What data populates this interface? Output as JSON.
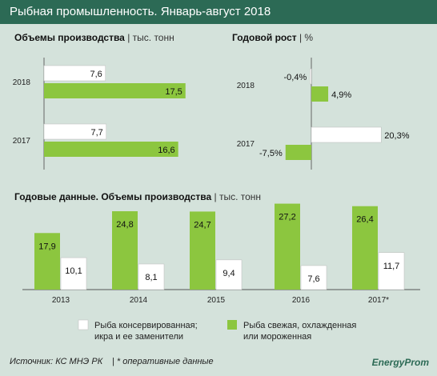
{
  "title": "Рыбная промышленность. Январь-август 2018",
  "colors": {
    "header": "#2c6a55",
    "canned": "#ffffff",
    "fresh": "#8cc63f",
    "background": "#d4e2db"
  },
  "panels": {
    "volume": {
      "title": "Объемы производства",
      "unit": "| тыс. тонн"
    },
    "growth": {
      "title": "Годовой рост",
      "unit": "| %"
    },
    "annual": {
      "title": "Годовые данные. Объемы производства",
      "unit": "| тыс. тонн"
    }
  },
  "legend": {
    "canned_line1": "Рыба консервированная;",
    "canned_line2": "икра и ее заменители",
    "fresh_line1": "Рыба свежая, охлажденная",
    "fresh_line2": "или мороженная"
  },
  "footer": {
    "source": "Источник: КС МНЭ РК",
    "note": "| * оперативные данные",
    "brand": "EnergyProm"
  },
  "chart_data": [
    {
      "type": "bar",
      "orientation": "horizontal",
      "title": "Объемы производства",
      "unit": "тыс. тонн",
      "categories": [
        "2018",
        "2017"
      ],
      "series": [
        {
          "key": "canned",
          "values": [
            7.6,
            7.7
          ],
          "labels": [
            "7,6",
            "7,7"
          ]
        },
        {
          "key": "fresh",
          "values": [
            17.5,
            16.6
          ],
          "labels": [
            "17,5",
            "16,6"
          ]
        }
      ]
    },
    {
      "type": "bar",
      "orientation": "horizontal",
      "title": "Годовой рост",
      "unit": "%",
      "categories": [
        "2018",
        "2017"
      ],
      "series": [
        {
          "key": "canned",
          "values": [
            -0.4,
            20.3
          ],
          "labels": [
            "-0,4%",
            "20,3%"
          ]
        },
        {
          "key": "fresh",
          "values": [
            4.9,
            -7.5
          ],
          "labels": [
            "4,9%",
            "-7,5%"
          ]
        }
      ]
    },
    {
      "type": "bar",
      "orientation": "vertical",
      "title": "Годовые данные. Объемы производства",
      "unit": "тыс. тонн",
      "categories": [
        "2013",
        "2014",
        "2015",
        "2016",
        "2017*"
      ],
      "series": [
        {
          "key": "fresh",
          "values": [
            17.9,
            24.8,
            24.7,
            27.2,
            26.4
          ],
          "labels": [
            "17,9",
            "24,8",
            "24,7",
            "27,2",
            "26,4"
          ]
        },
        {
          "key": "canned",
          "values": [
            10.1,
            8.1,
            9.4,
            7.6,
            11.7
          ],
          "labels": [
            "10,1",
            "8,1",
            "9,4",
            "7,6",
            "11,7"
          ]
        }
      ]
    }
  ]
}
